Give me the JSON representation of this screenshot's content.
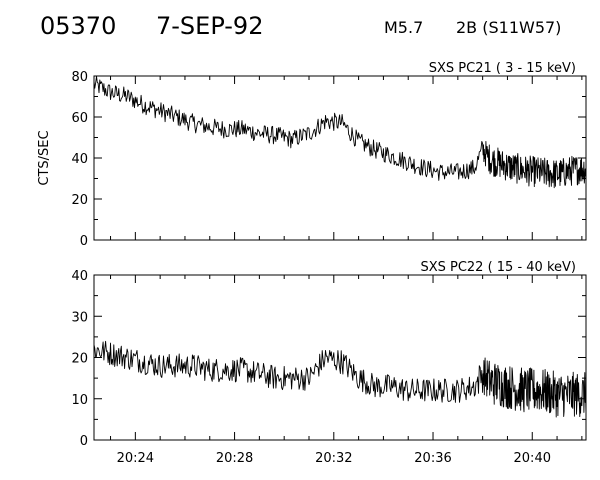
{
  "header": {
    "event_id": "05370",
    "date": "7-SEP-92",
    "goes_class": "M5.7",
    "region": "2B (S11W57)"
  },
  "chart_data": [
    {
      "type": "line",
      "title": "SXS PC21  (  3 - 15 keV)",
      "ylabel": "CTS/SEC",
      "xlabel": "",
      "xlim": [
        "20:22:20",
        "20:42:10"
      ],
      "ylim": [
        0,
        80
      ],
      "yticks": [
        "0",
        "20",
        "40",
        "60",
        "80"
      ],
      "xticks": [
        "20:24",
        "20:28",
        "20:32",
        "20:36",
        "20:40"
      ],
      "grid": false,
      "series": [
        {
          "x": [
            "20:22:20",
            "20:23:00",
            "20:23:40",
            "20:24:20",
            "20:25:00",
            "20:25:40",
            "20:26:20",
            "20:27:00",
            "20:27:40",
            "20:28:20",
            "20:29:00",
            "20:29:40",
            "20:30:20",
            "20:31:00",
            "20:31:40",
            "20:32:20",
            "20:33:00",
            "20:33:40",
            "20:34:20",
            "20:35:00",
            "20:35:40",
            "20:36:20",
            "20:37:00",
            "20:37:40",
            "20:38:00",
            "20:38:20",
            "20:39:00",
            "20:39:40",
            "20:40:20",
            "20:41:00",
            "20:41:40",
            "20:42:10"
          ],
          "values": [
            76,
            72,
            70,
            66,
            63,
            60,
            57,
            55,
            54,
            54,
            52,
            51,
            49,
            52,
            58,
            57,
            48,
            44,
            41,
            38,
            35,
            33,
            33,
            35,
            44,
            39,
            36,
            34,
            33,
            32,
            34,
            35
          ],
          "noise": [
            4.5,
            4.5,
            4.5,
            4.5,
            4.5,
            4.5,
            4.5,
            4.5,
            4.5,
            4.5,
            4.5,
            4.5,
            4.5,
            4.5,
            4.5,
            4.5,
            4.5,
            4.5,
            4.5,
            4.5,
            4.5,
            4.5,
            4.5,
            4.5,
            6,
            7.5,
            7.5,
            7.5,
            7.5,
            7.5,
            7.5,
            7.5
          ]
        }
      ]
    },
    {
      "type": "line",
      "title": "SXS PC22  ( 15 - 40 keV)",
      "ylabel": "",
      "xlabel": "",
      "xlim": [
        "20:22:20",
        "20:42:10"
      ],
      "ylim": [
        0,
        40
      ],
      "yticks": [
        "0",
        "10",
        "20",
        "30",
        "40"
      ],
      "xticks": [
        "20:24",
        "20:28",
        "20:32",
        "20:36",
        "20:40"
      ],
      "grid": false,
      "series": [
        {
          "x": [
            "20:22:20",
            "20:23:00",
            "20:23:40",
            "20:24:20",
            "20:25:00",
            "20:25:40",
            "20:26:20",
            "20:27:00",
            "20:27:40",
            "20:28:20",
            "20:29:00",
            "20:29:40",
            "20:30:20",
            "20:31:00",
            "20:31:40",
            "20:32:20",
            "20:33:00",
            "20:33:40",
            "20:34:20",
            "20:35:00",
            "20:35:40",
            "20:36:20",
            "20:37:00",
            "20:37:40",
            "20:38:00",
            "20:38:20",
            "20:39:00",
            "20:39:40",
            "20:40:20",
            "20:41:00",
            "20:41:40",
            "20:42:10"
          ],
          "values": [
            22,
            21,
            20,
            19,
            18,
            18,
            18,
            17,
            17,
            17,
            16,
            15,
            15,
            15,
            20,
            19,
            15,
            13,
            13,
            12,
            12,
            12,
            12,
            13,
            16,
            14,
            13,
            12,
            12,
            11,
            11,
            11
          ],
          "noise": [
            3,
            3,
            3,
            3,
            3,
            3,
            3,
            3,
            3,
            3,
            3,
            3,
            3,
            3,
            3,
            3,
            3,
            3,
            3,
            3,
            3,
            3,
            3,
            3,
            4.5,
            5.5,
            5.5,
            5.5,
            5.5,
            5.5,
            5.5,
            5.5
          ]
        }
      ]
    }
  ]
}
